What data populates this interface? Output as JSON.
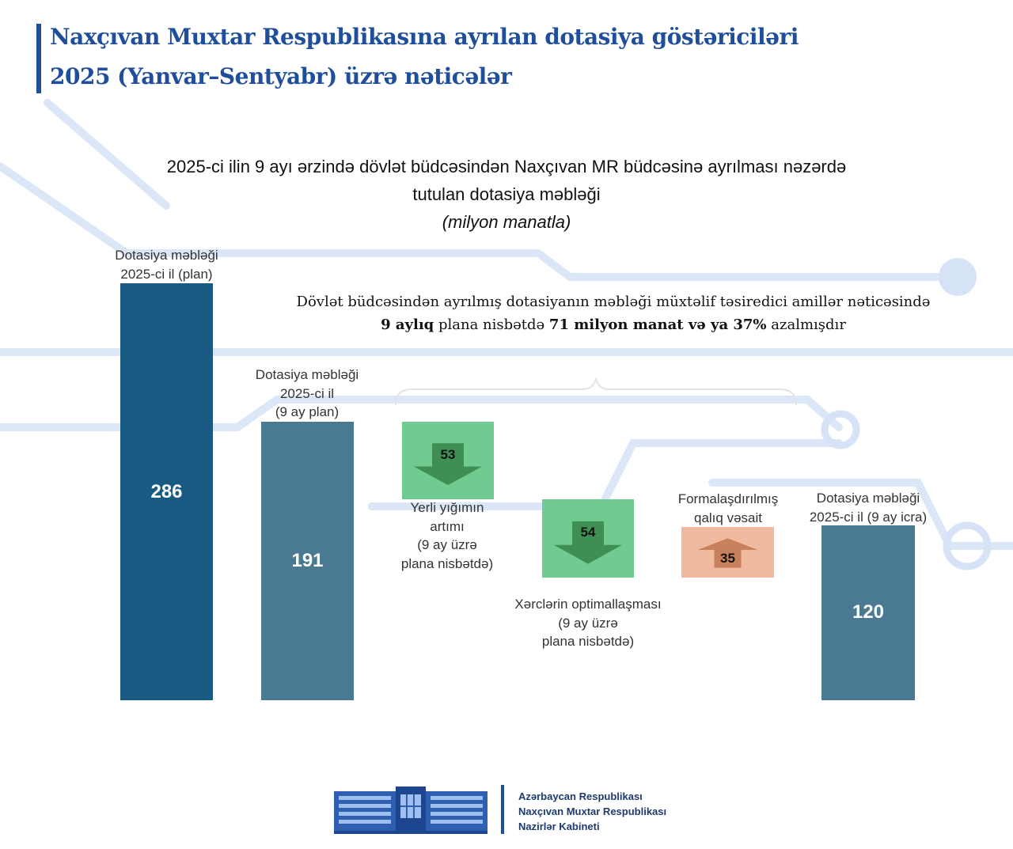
{
  "header": {
    "title_line1": "Naxçıvan Muxtar Respublikasına ayrılan dotasiya göstəriciləri",
    "title_line2": "2025 (Yanvar–Sentyabr) üzrə nəticələr"
  },
  "chart_data": {
    "type": "bar",
    "title_line1": "2025-ci ilin 9 ayı ərzində dövlət büdcəsindən Naxçıvan MR büdcəsinə ayrılması nəzərdə",
    "title_line2": "tutulan dotasiya məbləği",
    "unit": "(milyon manatla)",
    "ylim": [
      0,
      286
    ],
    "annotation": {
      "text_before": "Dövlət büdcəsindən ayrılmış dotasiyanın məbləği müxtəlif təsiredici amillər nəticəsində",
      "bold1": "9 aylıq",
      "mid": " plana nisbətdə ",
      "bold2": "71 milyon manat və ya 37%",
      "end": " azalmışdır"
    },
    "bars": [
      {
        "label_lines": [
          "Dotasiya məbləği",
          "2025-ci il (plan)"
        ],
        "value": 286,
        "color": "#195a82"
      },
      {
        "label_lines": [
          "Dotasiya məbləği",
          "2025-ci il",
          "(9 ay plan)"
        ],
        "value": 191,
        "color": "#4a7a92"
      },
      {
        "label_lines": [
          "Dotasiya məbləği",
          "2025-ci il (9 ay icra)"
        ],
        "value": 120,
        "color": "#4a7a92"
      }
    ],
    "changes": [
      {
        "label_lines": [
          "Yerli yığımın",
          "artımı",
          "(9 ay üzrə",
          "plana nisbətdə)"
        ],
        "value": 53,
        "direction": "down",
        "color": "#6fcb8f"
      },
      {
        "label_lines": [
          "Xərclərin optimallaşması",
          "(9 ay üzrə",
          "plana nisbətdə)"
        ],
        "value": 54,
        "direction": "down",
        "color": "#6fcb8f"
      },
      {
        "label_lines": [
          "Formalaşdırılmış",
          "qalıq vəsait"
        ],
        "value": 35,
        "direction": "up",
        "color": "#efbaa0"
      }
    ]
  },
  "footer": {
    "line1": "Azərbaycan Respublikası",
    "line2": "Naxçıvan Muxtar Respublikası",
    "line3": "Nazirlər Kabineti"
  },
  "colors": {
    "brand": "#1f4e9b",
    "arrow_down": "#3f8f55",
    "arrow_up": "#c9805d"
  }
}
